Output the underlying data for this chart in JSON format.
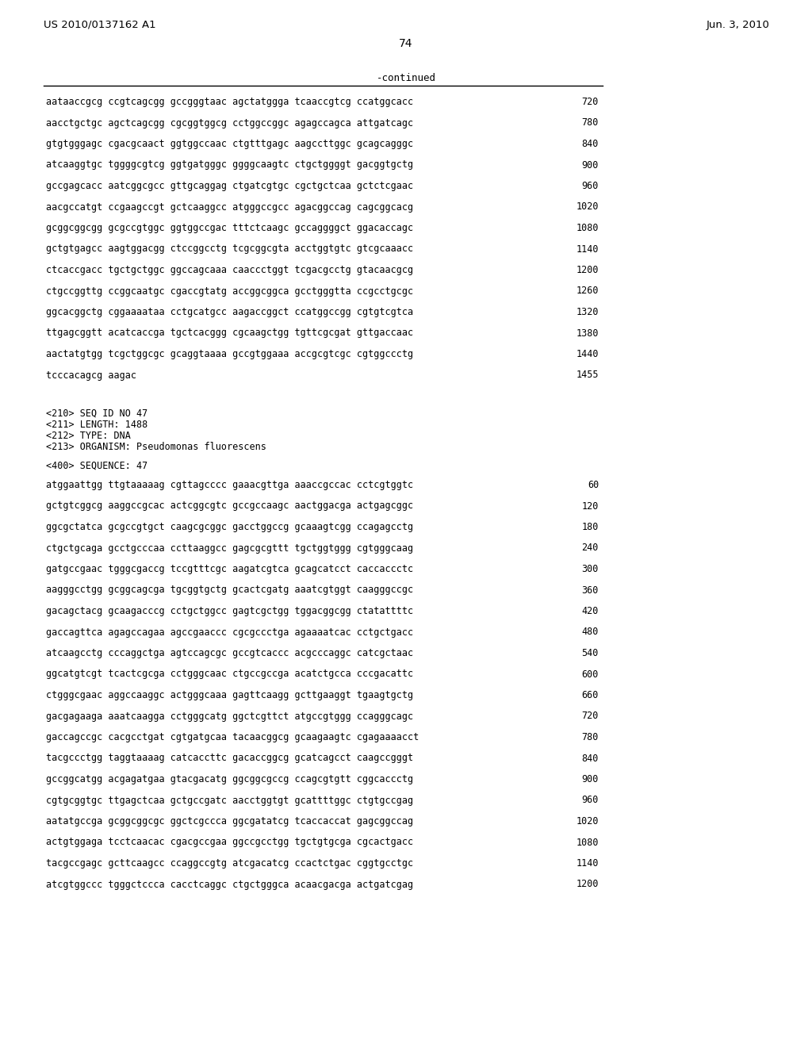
{
  "background_color": "#ffffff",
  "header_left": "US 2010/0137162 A1",
  "header_right": "Jun. 3, 2010",
  "page_number": "74",
  "continued_label": "-continued",
  "top_sequences": [
    [
      "aataaccgcg ccgtcagcgg gccgggtaac agctatggga tcaaccgtcg ccatggcacc",
      "720"
    ],
    [
      "aacctgctgc agctcagcgg cgcggtggcg cctggccggc agagccagca attgatcagc",
      "780"
    ],
    [
      "gtgtgggagc cgacgcaact ggtggccaac ctgtttgagc aagccttggc gcagcagggc",
      "840"
    ],
    [
      "atcaaggtgc tggggcgtcg ggtgatgggc ggggcaagtc ctgctggggt gacggtgctg",
      "900"
    ],
    [
      "gccgagcacc aatcggcgcc gttgcaggag ctgatcgtgc cgctgctcaa gctctcgaac",
      "960"
    ],
    [
      "aacgccatgt ccgaagccgt gctcaaggcc atgggccgcc agacggccag cagcggcacg",
      "1020"
    ],
    [
      "gcggcggcgg gcgccgtggc ggtggccgac tttctcaagc gccaggggct ggacaccagc",
      "1080"
    ],
    [
      "gctgtgagcc aagtggacgg ctccggcctg tcgcggcgta acctggtgtc gtcgcaaacc",
      "1140"
    ],
    [
      "ctcaccgacc tgctgctggc ggccagcaaa caaccctggt tcgacgcctg gtacaacgcg",
      "1200"
    ],
    [
      "ctgccggttg ccggcaatgc cgaccgtatg accggcggca gcctgggtta ccgcctgcgc",
      "1260"
    ],
    [
      "ggcacggctg cggaaaataa cctgcatgcc aagaccggct ccatggccgg cgtgtcgtca",
      "1320"
    ],
    [
      "ttgagcggtt acatcaccga tgctcacggg cgcaagctgg tgttcgcgat gttgaccaac",
      "1380"
    ],
    [
      "aactatgtgg tcgctggcgc gcaggtaaaa gccgtggaaa accgcgtcgc cgtggccctg",
      "1440"
    ],
    [
      "tcccacagcg aagac",
      "1455"
    ]
  ],
  "metadata_lines": [
    "<210> SEQ ID NO 47",
    "<211> LENGTH: 1488",
    "<212> TYPE: DNA",
    "<213> ORGANISM: Pseudomonas fluorescens"
  ],
  "seq_label": "<400> SEQUENCE: 47",
  "bottom_sequences": [
    [
      "atggaattgg ttgtaaaaag cgttagcccc gaaacgttga aaaccgccac cctcgtggtc",
      "60"
    ],
    [
      "gctgtcggcg aaggccgcac actcggcgtc gccgccaagc aactggacga actgagcggc",
      "120"
    ],
    [
      "ggcgctatca gcgccgtgct caagcgcggc gacctggccg gcaaagtcgg ccagagcctg",
      "180"
    ],
    [
      "ctgctgcaga gcctgcccaa ccttaaggcc gagcgcgttt tgctggtggg cgtgggcaag",
      "240"
    ],
    [
      "gatgccgaac tgggcgaccg tccgtttcgc aagatcgtca gcagcatcct caccaccctc",
      "300"
    ],
    [
      "aagggcctgg gcggcagcga tgcggtgctg gcactcgatg aaatcgtggt caagggccgc",
      "360"
    ],
    [
      "gacagctacg gcaagacccg cctgctggcc gagtcgctgg tggacggcgg ctatattttc",
      "420"
    ],
    [
      "gaccagttca agagccagaa agccgaaccc cgcgccctga agaaaatcac cctgctgacc",
      "480"
    ],
    [
      "atcaagcctg cccaggctga agtccagcgc gccgtcaccc acgcccaggc catcgctaac",
      "540"
    ],
    [
      "ggcatgtcgt tcactcgcga cctgggcaac ctgccgccga acatctgcca cccgacattc",
      "600"
    ],
    [
      "ctgggcgaac aggccaaggc actgggcaaa gagttcaagg gcttgaaggt tgaagtgctg",
      "660"
    ],
    [
      "gacgagaaga aaatcaagga cctgggcatg ggctcgttct atgccgtggg ccagggcagc",
      "720"
    ],
    [
      "gaccagccgc cacgcctgat cgtgatgcaa tacaacggcg gcaagaagtc cgagaaaacct",
      "780"
    ],
    [
      "tacgccctgg taggtaaaag catcaccttc gacaccggcg gcatcagcct caagccgggt",
      "840"
    ],
    [
      "gccggcatgg acgagatgaa gtacgacatg ggcggcgccg ccagcgtgtt cggcaccctg",
      "900"
    ],
    [
      "cgtgcggtgc ttgagctcaa gctgccgatc aacctggtgt gcattttggc ctgtgccgag",
      "960"
    ],
    [
      "aatatgccga gcggcggcgc ggctcgccca ggcgatatcg tcaccaccat gagcggccag",
      "1020"
    ],
    [
      "actgtggaga tcctcaacac cgacgccgaa ggccgcctgg tgctgtgcga cgcactgacc",
      "1080"
    ],
    [
      "tacgccgagc gcttcaagcc ccaggccgtg atcgacatcg ccactctgac cggtgcctgc",
      "1140"
    ],
    [
      "atcgtggccc tgggctccca cacctcaggc ctgctgggca acaacgacga actgatcgag",
      "1200"
    ]
  ]
}
